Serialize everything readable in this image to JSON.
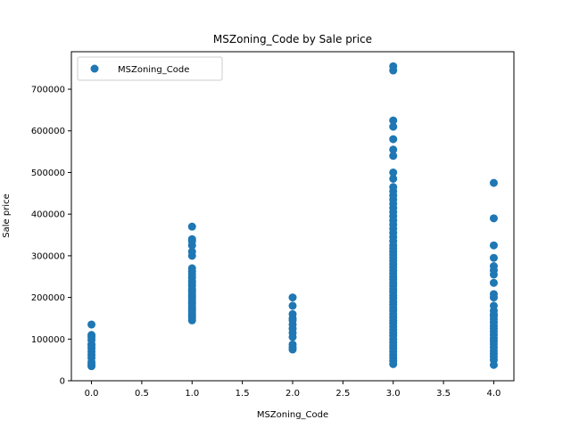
{
  "chart_data": {
    "type": "scatter",
    "title": "MSZoning_Code by Sale price",
    "xlabel": "MSZoning_Code",
    "ylabel": "Sale price",
    "xlim": [
      -0.2,
      4.2
    ],
    "ylim": [
      0,
      790000
    ],
    "xticks": [
      0.0,
      0.5,
      1.0,
      1.5,
      2.0,
      2.5,
      3.0,
      3.5,
      4.0
    ],
    "xtick_labels": [
      "0.0",
      "0.5",
      "1.0",
      "1.5",
      "2.0",
      "2.5",
      "3.0",
      "3.5",
      "4.0"
    ],
    "yticks": [
      0,
      100000,
      200000,
      300000,
      400000,
      500000,
      600000,
      700000
    ],
    "ytick_labels": [
      "0",
      "100000",
      "200000",
      "300000",
      "400000",
      "500000",
      "600000",
      "700000"
    ],
    "grid": false,
    "legend": {
      "position": "top-left"
    },
    "marker_color": "#1f77b4",
    "series": [
      {
        "name": "MSZoning_Code",
        "points": [
          [
            0,
            35000
          ],
          [
            0,
            40000
          ],
          [
            0,
            45000
          ],
          [
            0,
            55000
          ],
          [
            0,
            62000
          ],
          [
            0,
            70000
          ],
          [
            0,
            78000
          ],
          [
            0,
            85000
          ],
          [
            0,
            88000
          ],
          [
            0,
            98000
          ],
          [
            0,
            105000
          ],
          [
            0,
            110000
          ],
          [
            0,
            135000
          ],
          [
            1,
            145000
          ],
          [
            1,
            150000
          ],
          [
            1,
            155000
          ],
          [
            1,
            160000
          ],
          [
            1,
            165000
          ],
          [
            1,
            170000
          ],
          [
            1,
            175000
          ],
          [
            1,
            180000
          ],
          [
            1,
            185000
          ],
          [
            1,
            190000
          ],
          [
            1,
            195000
          ],
          [
            1,
            200000
          ],
          [
            1,
            205000
          ],
          [
            1,
            210000
          ],
          [
            1,
            215000
          ],
          [
            1,
            220000
          ],
          [
            1,
            228000
          ],
          [
            1,
            235000
          ],
          [
            1,
            240000
          ],
          [
            1,
            248000
          ],
          [
            1,
            255000
          ],
          [
            1,
            262000
          ],
          [
            1,
            270000
          ],
          [
            1,
            300000
          ],
          [
            1,
            310000
          ],
          [
            1,
            325000
          ],
          [
            1,
            335000
          ],
          [
            1,
            340000
          ],
          [
            1,
            370000
          ],
          [
            2,
            75000
          ],
          [
            2,
            80000
          ],
          [
            2,
            87000
          ],
          [
            2,
            105000
          ],
          [
            2,
            115000
          ],
          [
            2,
            125000
          ],
          [
            2,
            135000
          ],
          [
            2,
            145000
          ],
          [
            2,
            150000
          ],
          [
            2,
            160000
          ],
          [
            2,
            180000
          ],
          [
            2,
            200000
          ],
          [
            3,
            40000
          ],
          [
            3,
            48000
          ],
          [
            3,
            55000
          ],
          [
            3,
            62000
          ],
          [
            3,
            70000
          ],
          [
            3,
            78000
          ],
          [
            3,
            85000
          ],
          [
            3,
            92000
          ],
          [
            3,
            100000
          ],
          [
            3,
            108000
          ],
          [
            3,
            115000
          ],
          [
            3,
            122000
          ],
          [
            3,
            130000
          ],
          [
            3,
            138000
          ],
          [
            3,
            145000
          ],
          [
            3,
            152000
          ],
          [
            3,
            160000
          ],
          [
            3,
            168000
          ],
          [
            3,
            175000
          ],
          [
            3,
            183000
          ],
          [
            3,
            190000
          ],
          [
            3,
            198000
          ],
          [
            3,
            205000
          ],
          [
            3,
            213000
          ],
          [
            3,
            220000
          ],
          [
            3,
            228000
          ],
          [
            3,
            235000
          ],
          [
            3,
            243000
          ],
          [
            3,
            250000
          ],
          [
            3,
            258000
          ],
          [
            3,
            265000
          ],
          [
            3,
            273000
          ],
          [
            3,
            280000
          ],
          [
            3,
            288000
          ],
          [
            3,
            295000
          ],
          [
            3,
            303000
          ],
          [
            3,
            310000
          ],
          [
            3,
            318000
          ],
          [
            3,
            325000
          ],
          [
            3,
            335000
          ],
          [
            3,
            345000
          ],
          [
            3,
            355000
          ],
          [
            3,
            365000
          ],
          [
            3,
            375000
          ],
          [
            3,
            385000
          ],
          [
            3,
            395000
          ],
          [
            3,
            405000
          ],
          [
            3,
            415000
          ],
          [
            3,
            425000
          ],
          [
            3,
            435000
          ],
          [
            3,
            445000
          ],
          [
            3,
            455000
          ],
          [
            3,
            465000
          ],
          [
            3,
            485000
          ],
          [
            3,
            500000
          ],
          [
            3,
            540000
          ],
          [
            3,
            555000
          ],
          [
            3,
            580000
          ],
          [
            3,
            610000
          ],
          [
            3,
            625000
          ],
          [
            3,
            745000
          ],
          [
            3,
            755000
          ],
          [
            4,
            38000
          ],
          [
            4,
            50000
          ],
          [
            4,
            58000
          ],
          [
            4,
            65000
          ],
          [
            4,
            72000
          ],
          [
            4,
            80000
          ],
          [
            4,
            88000
          ],
          [
            4,
            95000
          ],
          [
            4,
            102000
          ],
          [
            4,
            110000
          ],
          [
            4,
            118000
          ],
          [
            4,
            125000
          ],
          [
            4,
            132000
          ],
          [
            4,
            140000
          ],
          [
            4,
            148000
          ],
          [
            4,
            155000
          ],
          [
            4,
            160000
          ],
          [
            4,
            168000
          ],
          [
            4,
            180000
          ],
          [
            4,
            200000
          ],
          [
            4,
            208000
          ],
          [
            4,
            235000
          ],
          [
            4,
            255000
          ],
          [
            4,
            265000
          ],
          [
            4,
            275000
          ],
          [
            4,
            295000
          ],
          [
            4,
            325000
          ],
          [
            4,
            390000
          ],
          [
            4,
            475000
          ]
        ]
      }
    ]
  }
}
